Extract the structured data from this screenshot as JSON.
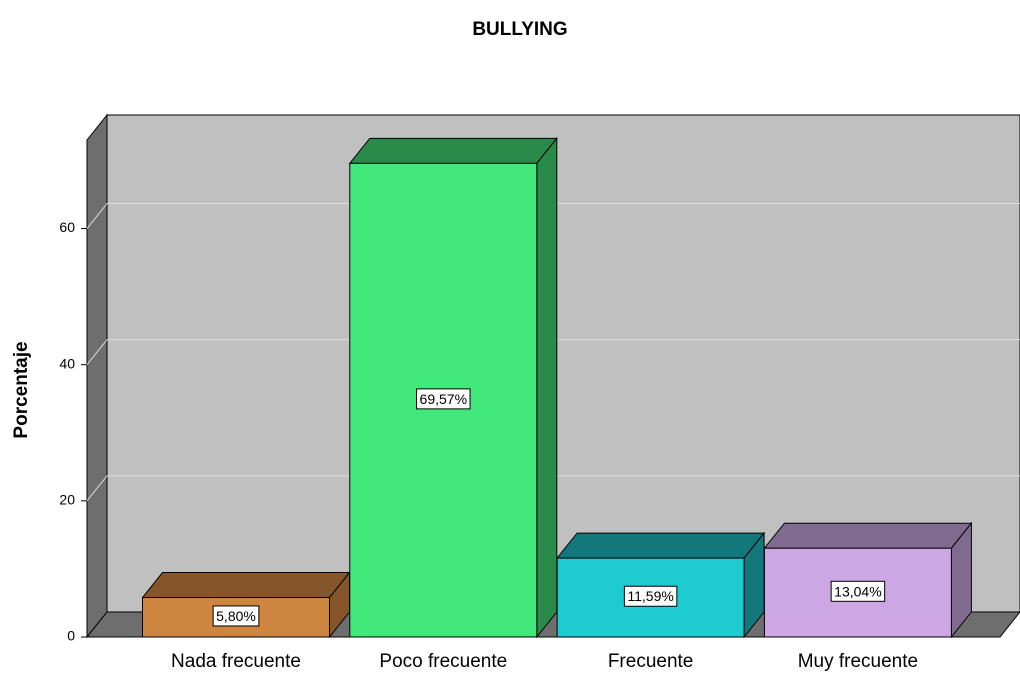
{
  "chart_data": {
    "type": "bar3d",
    "title": "BULLYING",
    "y_label": "Porcentaje",
    "categories": [
      "Nada frecuente",
      "Poco frecuente",
      "Frecuente",
      "Muy frecuente"
    ],
    "values": [
      5.8,
      69.57,
      11.59,
      13.04
    ],
    "value_labels": [
      "5,80%",
      "69,57%",
      "11,59%",
      "13,04%"
    ],
    "colors": [
      "#cd853f",
      "#43e87a",
      "#1ecbd0",
      "#cca7e3"
    ],
    "shade_colors": [
      "#87552a",
      "#2a8a4a",
      "#13787c",
      "#806a90"
    ],
    "ylim": [
      0,
      73
    ],
    "yticks": [
      0,
      20,
      40,
      60
    ],
    "grid": true
  }
}
